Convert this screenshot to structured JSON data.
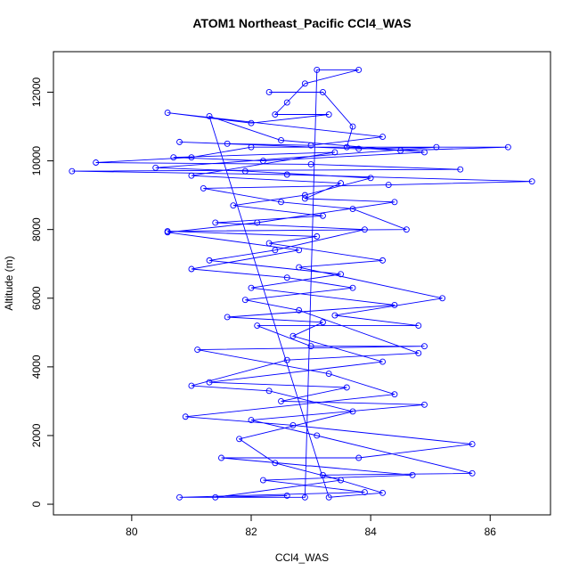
{
  "chart_data": {
    "type": "line",
    "title": "ATOM1 Northeast_Pacific CCl4_WAS",
    "xlabel": "CCl4_WAS",
    "ylabel": "Altitude (m)",
    "color": "#0000ff",
    "markers": true,
    "xlim": [
      78.69,
      87.01
    ],
    "ylim": [
      -310,
      13180
    ],
    "xticks": [
      80,
      82,
      84,
      86
    ],
    "yticks": [
      0,
      2000,
      4000,
      6000,
      8000,
      10000,
      12000
    ],
    "x": [
      82.3,
      83.2,
      83.7,
      83.6,
      84.5,
      86.3,
      82.0,
      81.0,
      79.4,
      83.0,
      85.5,
      79.0,
      82.6,
      86.7,
      84.3,
      81.2,
      82.5,
      83.7,
      84.6,
      80.6,
      83.1,
      82.3,
      84.2,
      82.8,
      85.2,
      83.4,
      84.8,
      82.1,
      83.0,
      84.9,
      81.1,
      83.3,
      84.4,
      80.9,
      82.7,
      85.7,
      83.8,
      81.5,
      84.7,
      82.2,
      83.9,
      80.8,
      82.9,
      83.1,
      83.8,
      82.9,
      82.6,
      82.4,
      83.3,
      82.0,
      80.6,
      84.2,
      83.0,
      81.6,
      80.8,
      83.8,
      85.1,
      80.4,
      81.9,
      84.0,
      82.9,
      81.7,
      83.2,
      81.4,
      83.9,
      82.4,
      81.3,
      83.5,
      82.0,
      84.4,
      81.6,
      83.2,
      82.7,
      84.2,
      81.3,
      83.6,
      82.5,
      84.9,
      82.0,
      83.1,
      85.7,
      83.2,
      84.2,
      83.3,
      81.3,
      82.5,
      84.9,
      82.2,
      80.7,
      83.4,
      81.0,
      83.5,
      82.9,
      84.4,
      82.1,
      80.6,
      82.8,
      81.0,
      82.6,
      83.7,
      81.9,
      82.8,
      84.8,
      82.6,
      81.0,
      82.3,
      83.7,
      81.8,
      82.4,
      83.5,
      81.4,
      82.6
    ],
    "y": [
      12000,
      12000,
      11000,
      10400,
      10300,
      10400,
      10400,
      10100,
      9950,
      9900,
      9750,
      9700,
      9600,
      9400,
      9300,
      9200,
      8800,
      8600,
      8000,
      7950,
      7800,
      7600,
      7100,
      6900,
      6000,
      5500,
      5200,
      5200,
      4600,
      4600,
      4500,
      3800,
      3200,
      2550,
      2300,
      1750,
      1350,
      1350,
      850,
      700,
      350,
      200,
      200,
      12650,
      12650,
      12250,
      11700,
      11350,
      11350,
      11100,
      11400,
      10700,
      10450,
      10500,
      10550,
      10350,
      10400,
      9800,
      9700,
      9500,
      9000,
      8700,
      8400,
      8200,
      8000,
      7400,
      7100,
      6700,
      6300,
      5800,
      5450,
      5300,
      4900,
      4150,
      3550,
      3400,
      3000,
      2900,
      2450,
      2000,
      900,
      850,
      330,
      200,
      11300,
      10600,
      10250,
      10000,
      10100,
      10250,
      9570,
      9350,
      8900,
      8800,
      8200,
      7920,
      7400,
      6850,
      6600,
      6300,
      5950,
      5650,
      4400,
      4200,
      3450,
      3300,
      2700,
      1900,
      1200,
      700,
      200,
      250
    ]
  }
}
